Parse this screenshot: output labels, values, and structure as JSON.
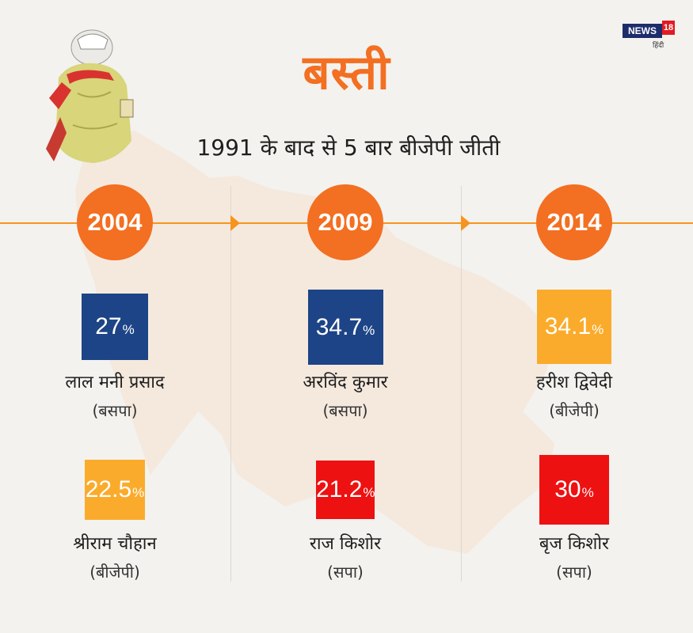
{
  "title": "बस्ती",
  "subtitle": "1991 के बाद से 5 बार बीजेपी जीती",
  "logo": {
    "brand": "NEWS",
    "number": "18",
    "sub": "हिंदी"
  },
  "colors": {
    "accent": "#f36f21",
    "bsp": "#1d4486",
    "bjp": "#fbab2b",
    "sp": "#ee1111"
  },
  "chart_data": {
    "type": "bar",
    "unit": "%",
    "columns": [
      {
        "year": "2004",
        "candidates": [
          {
            "name": "लाल मनी प्रसाद",
            "party": "(बसपा)",
            "value": 27,
            "label": "27",
            "color": "#1d4486"
          },
          {
            "name": "श्रीराम चौहान",
            "party": "(बीजेपी)",
            "value": 22.5,
            "label": "22.5",
            "color": "#fbab2b"
          }
        ]
      },
      {
        "year": "2009",
        "candidates": [
          {
            "name": "अरविंद कुमार",
            "party": "(बसपा)",
            "value": 34.7,
            "label": "34.7",
            "color": "#1d4486"
          },
          {
            "name": "राज किशोर",
            "party": "(सपा)",
            "value": 21.2,
            "label": "21.2",
            "color": "#ee1111"
          }
        ]
      },
      {
        "year": "2014",
        "candidates": [
          {
            "name": "हरीश द्विवेदी",
            "party": "(बीजेपी)",
            "value": 34.1,
            "label": "34.1",
            "color": "#fbab2b"
          },
          {
            "name": "बृज किशोर",
            "party": "(सपा)",
            "value": 30,
            "label": "30",
            "color": "#ee1111"
          }
        ]
      }
    ]
  }
}
